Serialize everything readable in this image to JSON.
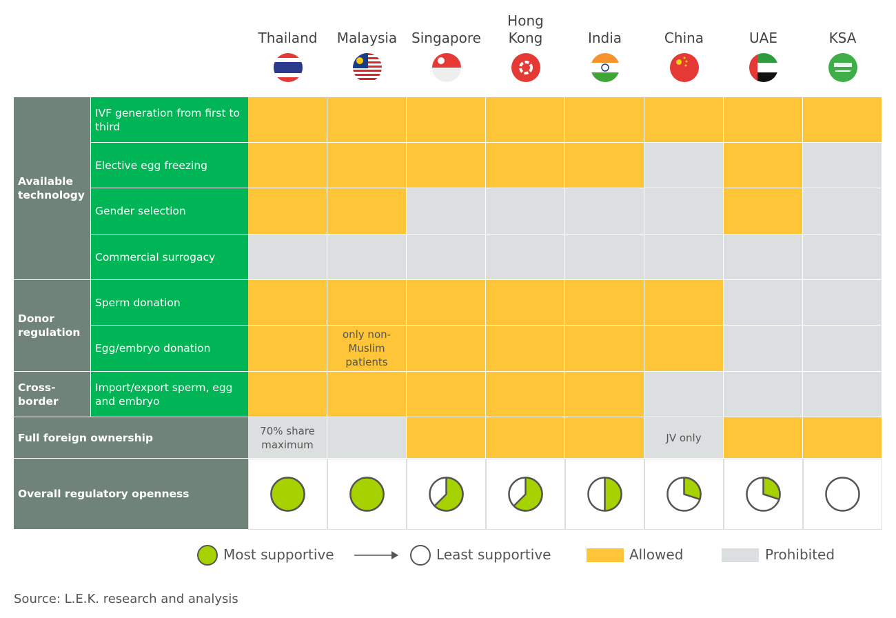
{
  "countries": [
    "Thailand",
    "Malaysia",
    "Singapore",
    "Hong Kong",
    "India",
    "China",
    "UAE",
    "KSA"
  ],
  "groups": [
    {
      "label": "Available technology",
      "rows": [
        {
          "label": "IVF generation from first to third",
          "cells": [
            "allowed",
            "allowed",
            "allowed",
            "allowed",
            "allowed",
            "allowed",
            "allowed",
            "allowed"
          ]
        },
        {
          "label": "Elective egg freezing",
          "cells": [
            "allowed",
            "allowed",
            "allowed",
            "allowed",
            "allowed",
            "prohibited",
            "allowed",
            "prohibited"
          ]
        },
        {
          "label": "Gender selection",
          "cells": [
            "allowed",
            "allowed",
            "prohibited",
            "prohibited",
            "prohibited",
            "prohibited",
            "allowed",
            "prohibited"
          ]
        },
        {
          "label": "Commercial surrogacy",
          "cells": [
            "prohibited",
            "prohibited",
            "prohibited",
            "prohibited",
            "prohibited",
            "prohibited",
            "prohibited",
            "prohibited"
          ]
        }
      ]
    },
    {
      "label": "Donor regulation",
      "rows": [
        {
          "label": "Sperm donation",
          "cells": [
            "allowed",
            "allowed",
            "allowed",
            "allowed",
            "allowed",
            "allowed",
            "prohibited",
            "prohibited"
          ]
        },
        {
          "label": "Egg/embryo donation",
          "cells": [
            "allowed",
            "allowed",
            "allowed",
            "allowed",
            "allowed",
            "allowed",
            "prohibited",
            "prohibited"
          ],
          "notes": {
            "1": "only non-Muslim patients"
          }
        }
      ]
    },
    {
      "label": "Cross-border",
      "rows": [
        {
          "label": "Import/export sperm, egg and embryo",
          "cells": [
            "allowed",
            "allowed",
            "allowed",
            "allowed",
            "allowed",
            "prohibited",
            "prohibited",
            "prohibited"
          ]
        }
      ]
    }
  ],
  "ownership": {
    "label": "Full foreign ownership",
    "cells": [
      "prohibited",
      "prohibited",
      "allowed",
      "allowed",
      "allowed",
      "prohibited",
      "allowed",
      "allowed"
    ],
    "notes": {
      "0": "70% share maximum",
      "5": "JV only"
    }
  },
  "openness": {
    "label": "Overall regulatory openness",
    "values": [
      1,
      1,
      0.625,
      0.625,
      0.5,
      0.3,
      0.3,
      0
    ],
    "color": "#a6d200"
  },
  "legend": {
    "most": "Most supportive",
    "least": "Least supportive",
    "allowed": {
      "label": "Allowed",
      "color": "#fdc537"
    },
    "prohibited": {
      "label": "Prohibited",
      "color": "#dcdfdf"
    }
  },
  "source": "Source: L.E.K. research and analysis"
}
